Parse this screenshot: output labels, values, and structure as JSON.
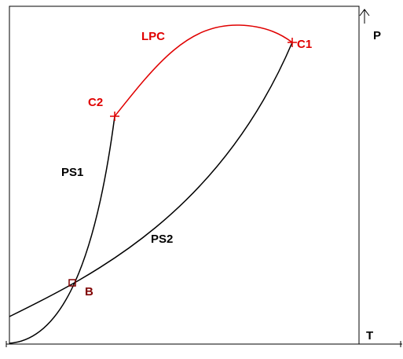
{
  "curves": {
    "ps1": "PS1",
    "ps2": "PS2",
    "lpc": "LPC"
  },
  "points": {
    "c1": "C1",
    "c2": "C2",
    "b": "B"
  },
  "axes": {
    "p": "P",
    "t": "T"
  }
}
